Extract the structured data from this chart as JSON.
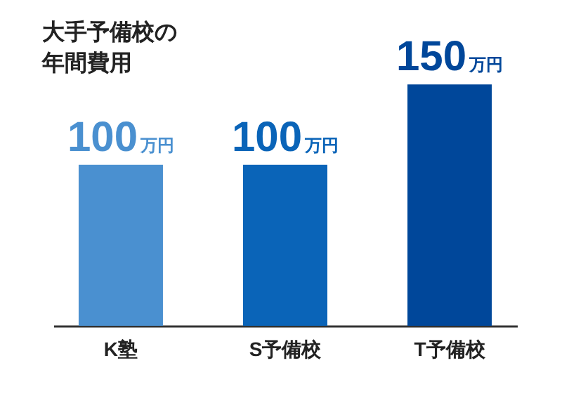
{
  "chart_data": {
    "type": "bar",
    "title": "大手予備校の年間費用",
    "categories": [
      "K塾",
      "S予備校",
      "T予備校"
    ],
    "values": [
      100,
      100,
      150
    ],
    "colors": [
      "#4a90d0",
      "#0a64b8",
      "#00479a"
    ],
    "value_labels": [
      "100万円",
      "100万円",
      "150万円"
    ],
    "grid": false
  }
}
